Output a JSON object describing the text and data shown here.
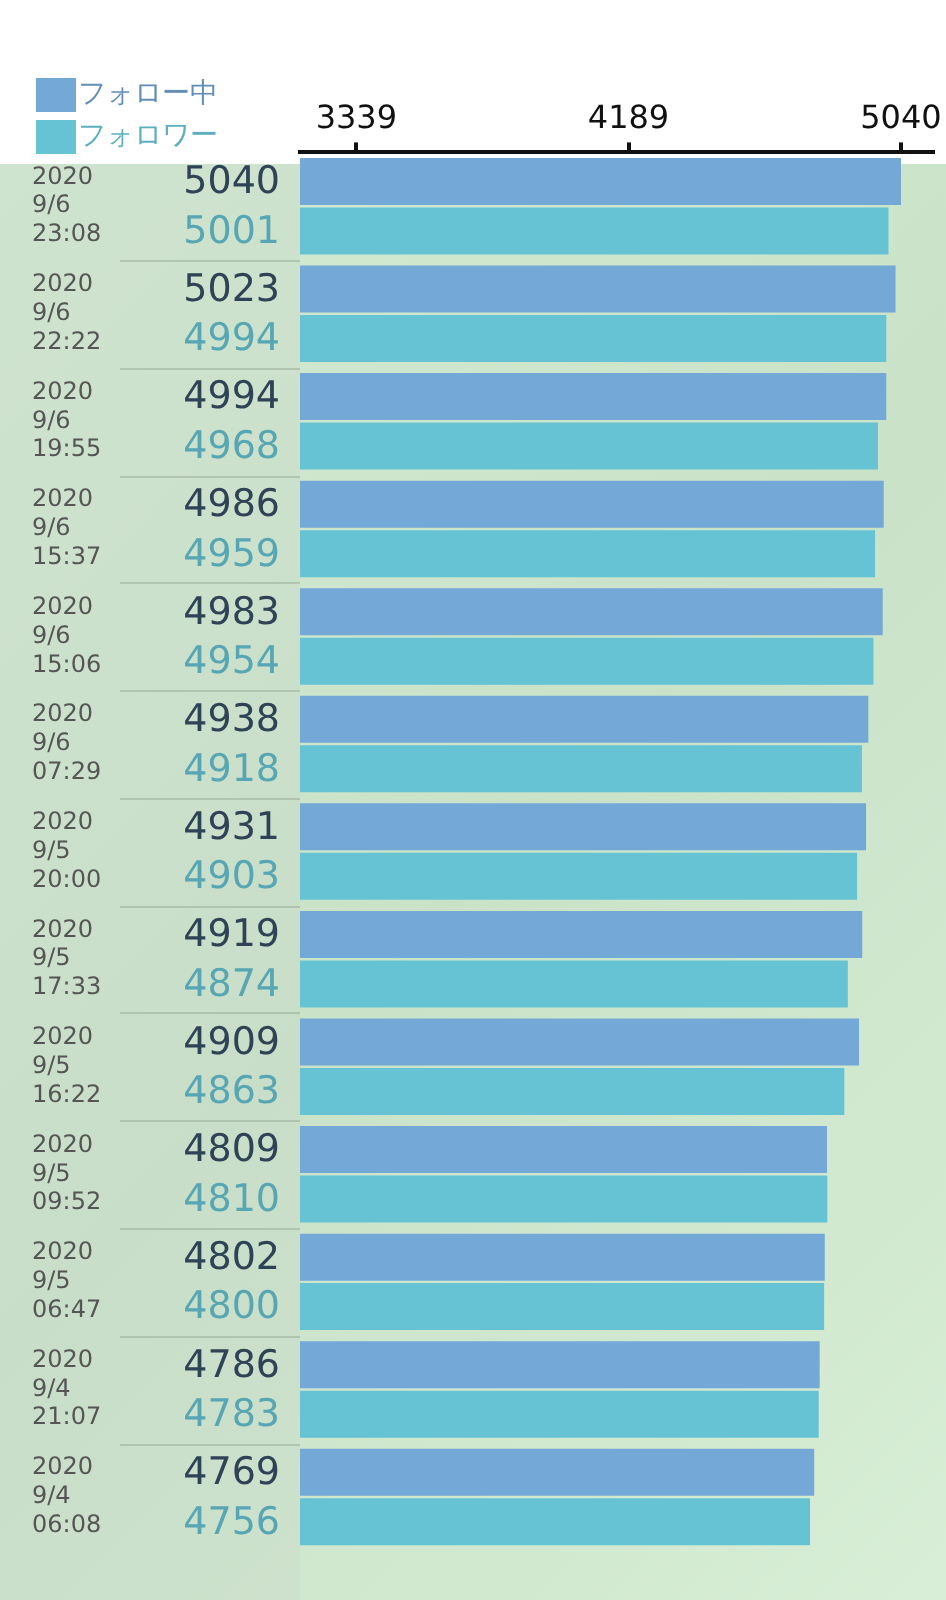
{
  "chart_data": {
    "type": "bar",
    "orientation": "horizontal",
    "categories": [
      "2020\n9/6\n23:08",
      "2020\n9/6\n22:22",
      "2020\n9/6\n19:55",
      "2020\n9/6\n15:37",
      "2020\n9/6\n15:06",
      "2020\n9/6\n07:29",
      "2020\n9/5\n20:00",
      "2020\n9/5\n17:33",
      "2020\n9/5\n16:22",
      "2020\n9/5\n09:52",
      "2020\n9/5\n06:47",
      "2020\n9/4\n21:07",
      "2020\n9/4\n06:08"
    ],
    "series": [
      {
        "name": "フォロー中",
        "color": "#74a8d6",
        "values": [
          5040,
          5023,
          4994,
          4986,
          4983,
          4938,
          4931,
          4919,
          4909,
          4809,
          4802,
          4786,
          4769
        ]
      },
      {
        "name": "フォロワー",
        "color": "#66c3d3",
        "values": [
          5001,
          4994,
          4968,
          4959,
          4954,
          4918,
          4903,
          4874,
          4863,
          4810,
          4800,
          4783,
          4756
        ]
      }
    ],
    "x2lim": [
      3163,
      5139
    ],
    "x2ticks": [
      3339,
      4189,
      5040
    ],
    "data_labels": true,
    "legend": "top left"
  }
}
